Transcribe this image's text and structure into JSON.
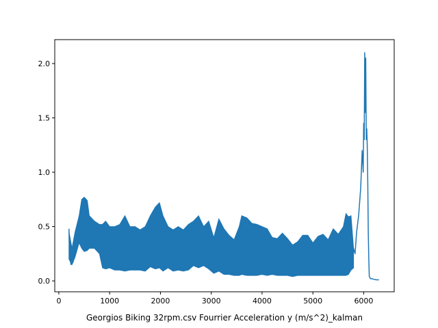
{
  "chart_data": {
    "type": "line",
    "title": "",
    "xlabel": "Georgios Biking 32rpm.csv Fourrier Acceleration y (m/s^2)_kalman",
    "ylabel": "",
    "xlim": [
      -80,
      6600
    ],
    "ylim": [
      -0.1,
      2.22
    ],
    "xticks": [
      0,
      1000,
      2000,
      3000,
      4000,
      5000,
      6000
    ],
    "xtick_labels": [
      "0",
      "1000",
      "2000",
      "3000",
      "4000",
      "5000",
      "6000"
    ],
    "yticks": [
      0.0,
      0.5,
      1.0,
      1.5,
      2.0
    ],
    "ytick_labels": [
      "0.0",
      "0.5",
      "1.0",
      "1.5",
      "2.0"
    ],
    "grid": false,
    "legend": "none",
    "series": [
      {
        "color": "#1f77b4",
        "band": {
          "x": [
            200,
            260,
            320,
            400,
            450,
            500,
            560,
            600,
            700,
            800,
            860,
            920,
            1000,
            1100,
            1200,
            1300,
            1400,
            1500,
            1600,
            1700,
            1800,
            1900,
            1980,
            2050,
            2150,
            2250,
            2350,
            2450,
            2550,
            2650,
            2750,
            2850,
            2950,
            3050,
            3150,
            3250,
            3350,
            3450,
            3550,
            3600,
            3700,
            3800,
            3900,
            4000,
            4100,
            4200,
            4300,
            4400,
            4500,
            4600,
            4700,
            4800,
            4900,
            5000,
            5100,
            5200,
            5300,
            5400,
            5500,
            5600,
            5650,
            5700,
            5750,
            5800
          ],
          "upper": [
            0.45,
            0.3,
            0.45,
            0.6,
            0.75,
            0.77,
            0.74,
            0.6,
            0.55,
            0.52,
            0.52,
            0.55,
            0.5,
            0.5,
            0.52,
            0.6,
            0.5,
            0.5,
            0.47,
            0.5,
            0.6,
            0.68,
            0.72,
            0.6,
            0.5,
            0.47,
            0.5,
            0.47,
            0.52,
            0.55,
            0.6,
            0.5,
            0.55,
            0.4,
            0.57,
            0.48,
            0.42,
            0.38,
            0.5,
            0.6,
            0.58,
            0.53,
            0.52,
            0.5,
            0.48,
            0.4,
            0.39,
            0.44,
            0.39,
            0.33,
            0.36,
            0.42,
            0.42,
            0.35,
            0.41,
            0.43,
            0.38,
            0.48,
            0.43,
            0.5,
            0.62,
            0.59,
            0.6,
            0.3
          ],
          "lower": [
            0.2,
            0.15,
            0.22,
            0.35,
            0.3,
            0.27,
            0.28,
            0.3,
            0.3,
            0.25,
            0.12,
            0.11,
            0.12,
            0.1,
            0.1,
            0.09,
            0.1,
            0.1,
            0.1,
            0.09,
            0.13,
            0.11,
            0.12,
            0.09,
            0.12,
            0.09,
            0.1,
            0.09,
            0.1,
            0.14,
            0.12,
            0.14,
            0.11,
            0.07,
            0.09,
            0.06,
            0.06,
            0.05,
            0.05,
            0.06,
            0.05,
            0.05,
            0.05,
            0.06,
            0.05,
            0.06,
            0.05,
            0.05,
            0.05,
            0.04,
            0.05,
            0.05,
            0.05,
            0.05,
            0.05,
            0.05,
            0.05,
            0.05,
            0.05,
            0.05,
            0.05,
            0.06,
            0.1,
            0.12
          ]
        },
        "line": {
          "x": [
            200,
            210,
            220,
            240,
            260,
            280,
            300,
            330
          ],
          "y": [
            0.48,
            0.3,
            0.2,
            0.15,
            0.2,
            0.17,
            0.3,
            0.42
          ]
        },
        "tail": {
          "x": [
            5800,
            5830,
            5860,
            5900,
            5940,
            5970,
            5990,
            6000,
            6010,
            6020,
            6030,
            6040,
            6050,
            6060,
            6070,
            6080,
            6090,
            6100,
            6110,
            6120,
            6140,
            6160,
            6200,
            6250,
            6300
          ],
          "y": [
            0.3,
            0.25,
            0.45,
            0.6,
            0.85,
            1.2,
            1.0,
            1.45,
            1.3,
            2.1,
            1.55,
            2.05,
            1.3,
            1.4,
            1.25,
            0.9,
            0.45,
            0.2,
            0.04,
            0.03,
            0.02,
            0.02,
            0.015,
            0.01,
            0.01
          ]
        }
      }
    ]
  }
}
